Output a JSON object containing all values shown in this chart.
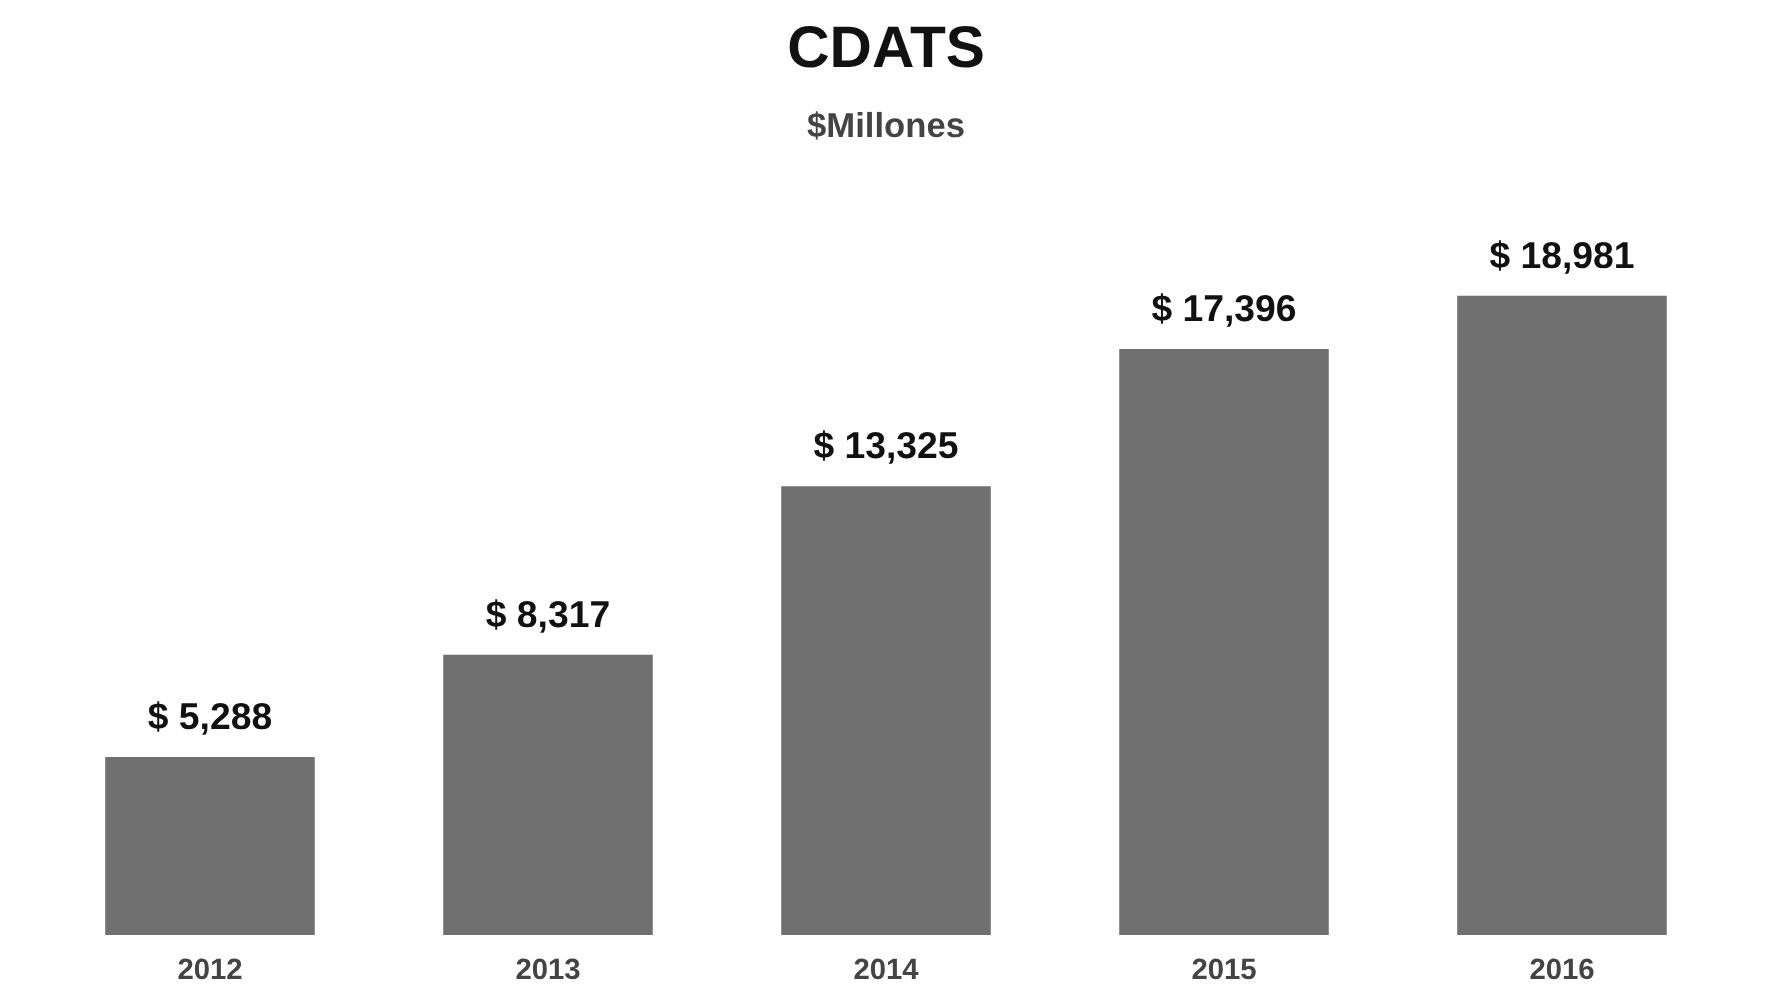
{
  "chart_data": {
    "type": "bar",
    "title": "CDATS",
    "subtitle": "$Millones",
    "categories": [
      "2012",
      "2013",
      "2014",
      "2015",
      "2016"
    ],
    "values": [
      5288,
      8317,
      13325,
      17396,
      18981
    ],
    "value_labels": [
      "$ 5,288",
      "$ 8,317",
      "$ 13,325",
      "$ 17,396",
      "$ 18,981"
    ],
    "color": "#6f6f6f",
    "grid": false
  }
}
